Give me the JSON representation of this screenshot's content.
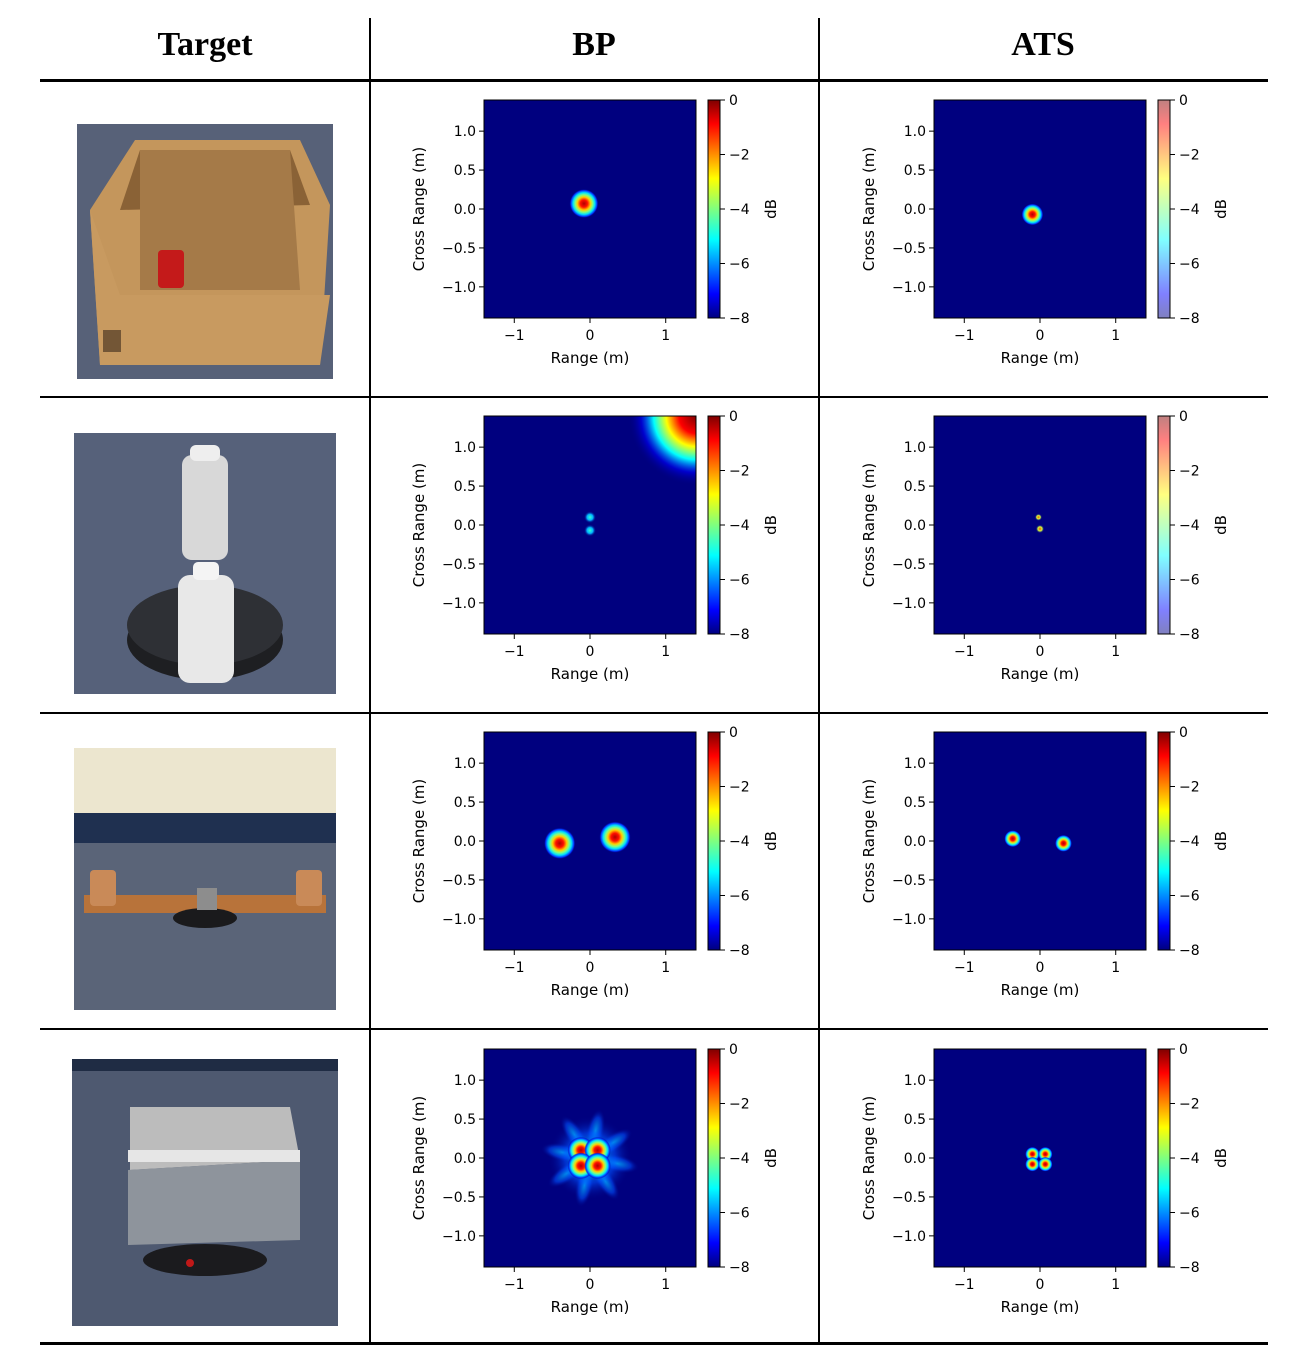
{
  "table": {
    "columns": [
      "Target",
      "BP",
      "ATS"
    ],
    "rows": [
      {
        "target_desc": "cardboard box with soda can"
      },
      {
        "target_desc": "two stacked bottles on turntable"
      },
      {
        "target_desc": "two copper cylinders on board"
      },
      {
        "target_desc": "foil-lined box on turntable"
      }
    ]
  },
  "plot_labels": {
    "xlabel": "Range (m)",
    "ylabel": "Cross Range (m)",
    "cbar_label": "dB",
    "x_ticks": [
      "−1",
      "0",
      "1"
    ],
    "y_ticks": [
      "1.0",
      "0.5",
      "0.0",
      "−0.5",
      "−1.0"
    ],
    "cbar_ticks": [
      "0",
      "−2",
      "−4",
      "−6",
      "−8"
    ]
  },
  "chart_data": [
    {
      "type": "heatmap",
      "panel": "BP-1",
      "xlim": [
        -1.4,
        1.4
      ],
      "ylim": [
        -1.4,
        1.4
      ],
      "clim": [
        -8,
        0
      ],
      "blobs": [
        {
          "x": -0.08,
          "y": 0.07,
          "r": 0.12
        }
      ]
    },
    {
      "type": "heatmap",
      "panel": "ATS-1",
      "xlim": [
        -1.4,
        1.4
      ],
      "ylim": [
        -1.4,
        1.4
      ],
      "clim": [
        -8,
        0
      ],
      "blobs": [
        {
          "x": -0.1,
          "y": -0.07,
          "r": 0.09
        }
      ]
    },
    {
      "type": "heatmap",
      "panel": "BP-2",
      "xlim": [
        -1.4,
        1.4
      ],
      "ylim": [
        -1.4,
        1.4
      ],
      "clim": [
        -8,
        0
      ],
      "blobs": [
        {
          "x": 0.0,
          "y": 0.1,
          "r": 0.05,
          "peak": -4
        },
        {
          "x": 0.0,
          "y": -0.07,
          "r": 0.05,
          "peak": -5
        }
      ],
      "corner_artifact": true
    },
    {
      "type": "heatmap",
      "panel": "ATS-2",
      "xlim": [
        -1.4,
        1.4
      ],
      "ylim": [
        -1.4,
        1.4
      ],
      "clim": [
        -8,
        0
      ],
      "blobs": [
        {
          "x": -0.02,
          "y": 0.1,
          "r": 0.03,
          "peak": -2
        },
        {
          "x": 0.0,
          "y": -0.05,
          "r": 0.035,
          "peak": -1
        }
      ]
    },
    {
      "type": "heatmap",
      "panel": "BP-3",
      "xlim": [
        -1.4,
        1.4
      ],
      "ylim": [
        -1.4,
        1.4
      ],
      "clim": [
        -8,
        0
      ],
      "blobs": [
        {
          "x": -0.4,
          "y": -0.03,
          "r": 0.13
        },
        {
          "x": 0.33,
          "y": 0.05,
          "r": 0.13
        }
      ]
    },
    {
      "type": "heatmap",
      "panel": "ATS-3",
      "xlim": [
        -1.4,
        1.4
      ],
      "ylim": [
        -1.4,
        1.4
      ],
      "clim": [
        -8,
        0
      ],
      "blobs": [
        {
          "x": -0.36,
          "y": 0.03,
          "r": 0.07
        },
        {
          "x": 0.31,
          "y": -0.03,
          "r": 0.07
        }
      ]
    },
    {
      "type": "heatmap",
      "panel": "BP-4",
      "xlim": [
        -1.4,
        1.4
      ],
      "ylim": [
        -1.4,
        1.4
      ],
      "clim": [
        -8,
        0
      ],
      "blobs": [
        {
          "x": -0.12,
          "y": 0.1,
          "r": 0.11
        },
        {
          "x": 0.1,
          "y": 0.1,
          "r": 0.11
        },
        {
          "x": -0.12,
          "y": -0.1,
          "r": 0.11
        },
        {
          "x": 0.1,
          "y": -0.1,
          "r": 0.11
        }
      ],
      "halo": true
    },
    {
      "type": "heatmap",
      "panel": "ATS-4",
      "xlim": [
        -1.4,
        1.4
      ],
      "ylim": [
        -1.4,
        1.4
      ],
      "clim": [
        -8,
        0
      ],
      "blobs": [
        {
          "x": -0.1,
          "y": 0.05,
          "r": 0.06
        },
        {
          "x": 0.07,
          "y": 0.05,
          "r": 0.06
        },
        {
          "x": -0.1,
          "y": -0.08,
          "r": 0.06
        },
        {
          "x": 0.07,
          "y": -0.08,
          "r": 0.06
        }
      ]
    }
  ]
}
